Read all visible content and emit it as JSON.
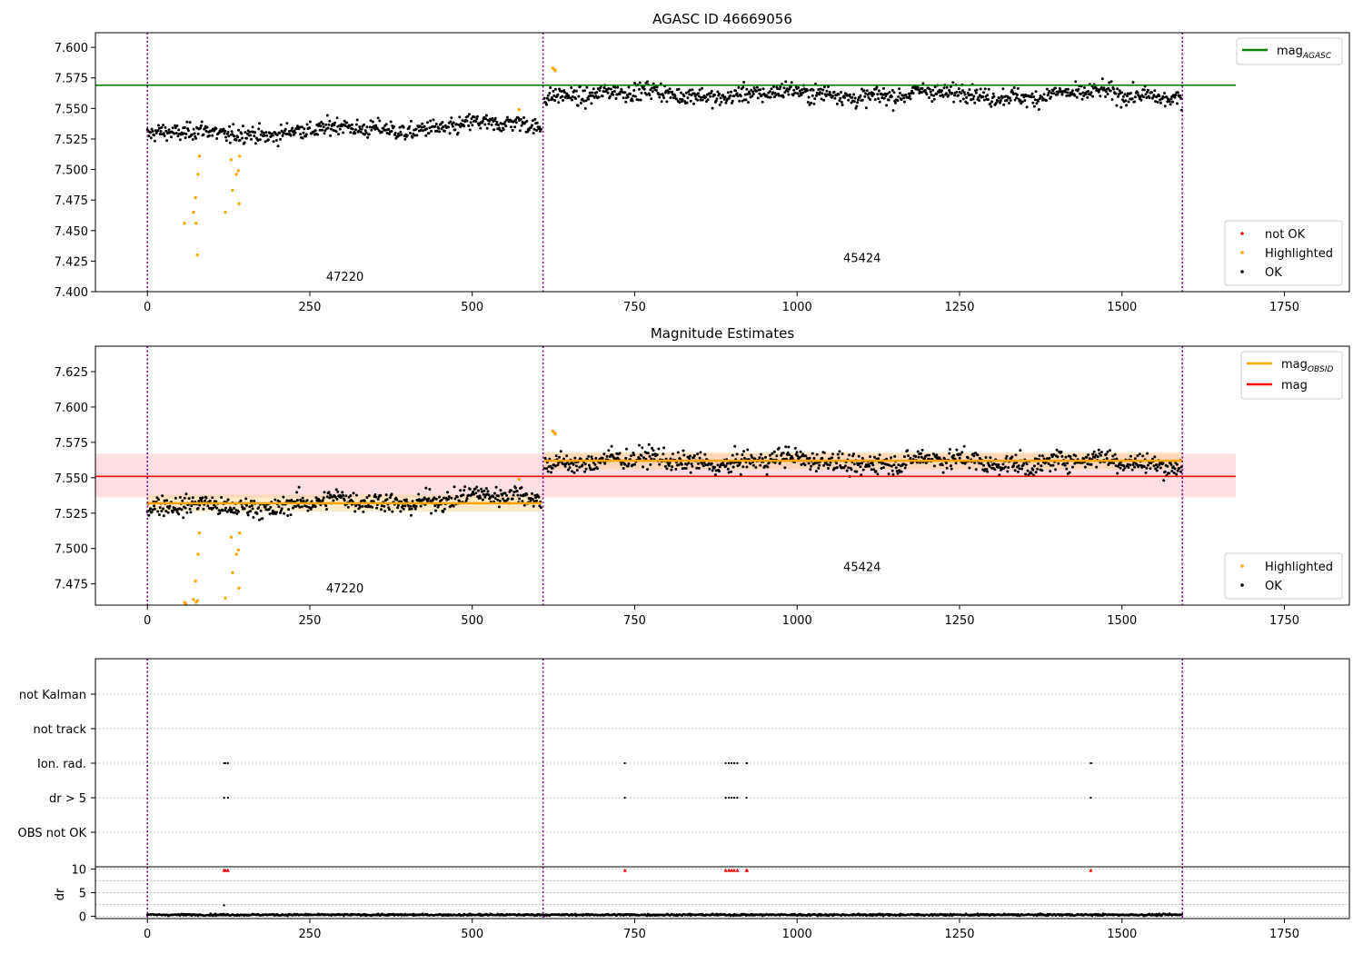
{
  "colors": {
    "ok": "#000000",
    "not_ok": "#ff0000",
    "highlighted": "#ffa500",
    "mag_agasc_line": "#008000",
    "mag_line": "#ff0000",
    "mag_obsid_line": "#ffa500",
    "mag_band": "#ffb0b8",
    "obsid_band": "#ffd08a",
    "obsid_boundary": "#800080",
    "grid": "#b0b0b0"
  },
  "chart_data": [
    {
      "type": "scatter",
      "title": "AGASC ID 46669056",
      "xlim": [
        -80,
        1850
      ],
      "ylim": [
        7.4,
        7.612
      ],
      "xticks": [
        0,
        250,
        500,
        750,
        1000,
        1250,
        1500,
        1750
      ],
      "yticks": [
        7.4,
        7.425,
        7.45,
        7.475,
        7.5,
        7.525,
        7.55,
        7.575,
        7.6
      ],
      "vlines": [
        0,
        609,
        1593
      ],
      "obsid_labels": [
        {
          "text": "47220",
          "x": 304,
          "y": 7.409
        },
        {
          "text": "45424",
          "x": 1100,
          "y": 7.424
        }
      ],
      "lines": [
        {
          "name": "mag$_{AGASC}$",
          "y": 7.569,
          "x": [
            -80,
            1675
          ]
        }
      ],
      "legend_lines": [
        {
          "label": "mag",
          "sub": "AGASC",
          "color": "mag_agasc_line"
        }
      ],
      "legend_markers": [
        {
          "label": "not OK",
          "color": "not_ok"
        },
        {
          "label": "Highlighted",
          "color": "highlighted"
        },
        {
          "label": "OK",
          "color": "ok"
        }
      ],
      "segments": [
        {
          "x0": 0,
          "x1": 607,
          "y0": 7.528,
          "y1": 7.537,
          "noise": 0.0055
        },
        {
          "x0": 611,
          "x1": 1593,
          "y0": 7.562,
          "y1": 7.561,
          "noise": 0.0055
        }
      ],
      "highlighted_points": [
        [
          57,
          7.456
        ],
        [
          71,
          7.465
        ],
        [
          74,
          7.477
        ],
        [
          75,
          7.456
        ],
        [
          78,
          7.496
        ],
        [
          80,
          7.511
        ],
        [
          77,
          7.43
        ],
        [
          120,
          7.465
        ],
        [
          129,
          7.508
        ],
        [
          131,
          7.483
        ],
        [
          137,
          7.496
        ],
        [
          140,
          7.499
        ],
        [
          141,
          7.472
        ],
        [
          142,
          7.511
        ],
        [
          572,
          7.549
        ],
        [
          624,
          7.583
        ],
        [
          626,
          7.582
        ],
        [
          628,
          7.581
        ]
      ]
    },
    {
      "type": "scatter",
      "title": "Magnitude Estimates",
      "xlim": [
        -80,
        1850
      ],
      "ylim": [
        7.46,
        7.643
      ],
      "xticks": [
        0,
        250,
        500,
        750,
        1000,
        1250,
        1500,
        1750
      ],
      "yticks": [
        7.475,
        7.5,
        7.525,
        7.55,
        7.575,
        7.6,
        7.625
      ],
      "vlines": [
        0,
        609,
        1593
      ],
      "obsid_labels": [
        {
          "text": "47220",
          "x": 304,
          "y": 7.469
        },
        {
          "text": "45424",
          "x": 1100,
          "y": 7.484
        }
      ],
      "mag": {
        "y": 7.551,
        "band": [
          7.536,
          7.567
        ],
        "x": [
          -80,
          1675
        ]
      },
      "mag_obsid": [
        {
          "x0": 0,
          "x1": 607,
          "y": 7.532,
          "band": [
            7.526,
            7.538
          ]
        },
        {
          "x0": 611,
          "x1": 1593,
          "y": 7.562,
          "band": [
            7.556,
            7.568
          ]
        }
      ],
      "legend_lines": [
        {
          "label": "mag",
          "sub": "OBSID",
          "color": "mag_obsid_line"
        },
        {
          "label": "mag",
          "sub": "",
          "color": "mag_line"
        }
      ],
      "legend_markers": [
        {
          "label": "Highlighted",
          "color": "highlighted"
        },
        {
          "label": "OK",
          "color": "ok"
        }
      ],
      "segments": [
        {
          "x0": 0,
          "x1": 607,
          "y0": 7.528,
          "y1": 7.537,
          "noise": 0.0055
        },
        {
          "x0": 611,
          "x1": 1593,
          "y0": 7.562,
          "y1": 7.561,
          "noise": 0.0055
        }
      ],
      "highlighted_points": [
        [
          57,
          7.462
        ],
        [
          59,
          7.461
        ],
        [
          71,
          7.464
        ],
        [
          74,
          7.477
        ],
        [
          75,
          7.462
        ],
        [
          78,
          7.496
        ],
        [
          80,
          7.511
        ],
        [
          77,
          7.463
        ],
        [
          120,
          7.465
        ],
        [
          129,
          7.508
        ],
        [
          131,
          7.483
        ],
        [
          137,
          7.496
        ],
        [
          140,
          7.499
        ],
        [
          141,
          7.472
        ],
        [
          142,
          7.511
        ],
        [
          572,
          7.549
        ],
        [
          624,
          7.583
        ],
        [
          626,
          7.582
        ],
        [
          628,
          7.581
        ]
      ]
    },
    {
      "type": "scatter",
      "title": "",
      "xlim": [
        -80,
        1850
      ],
      "xticks": [
        0,
        250,
        500,
        750,
        1000,
        1250,
        1500,
        1750
      ],
      "vlines": [
        0,
        609,
        1593
      ],
      "flag_categories": [
        "not Kalman",
        "not track",
        "Ion. rad.",
        "dr > 5",
        "OBS not OK"
      ],
      "flag_points": {
        "Ion. rad.": [
          118,
          120,
          124,
          735,
          890,
          895,
          899,
          903,
          908,
          922,
          923,
          1452,
          1453
        ],
        "dr > 5": [
          118,
          124,
          735,
          890,
          895,
          899,
          903,
          908,
          922,
          1452
        ]
      },
      "dr": {
        "ylabel": "dr",
        "yticks": [
          0,
          5,
          10
        ],
        "ylim": [
          -0.5,
          10.5
        ],
        "typical": 0.3,
        "noise": 0.25,
        "high_points": [
          118,
          120,
          124,
          735,
          890,
          895,
          899,
          903,
          908,
          922,
          923,
          1452
        ],
        "high_value": 9.8,
        "extra_points": [
          [
            118,
            2.3
          ]
        ]
      }
    }
  ]
}
